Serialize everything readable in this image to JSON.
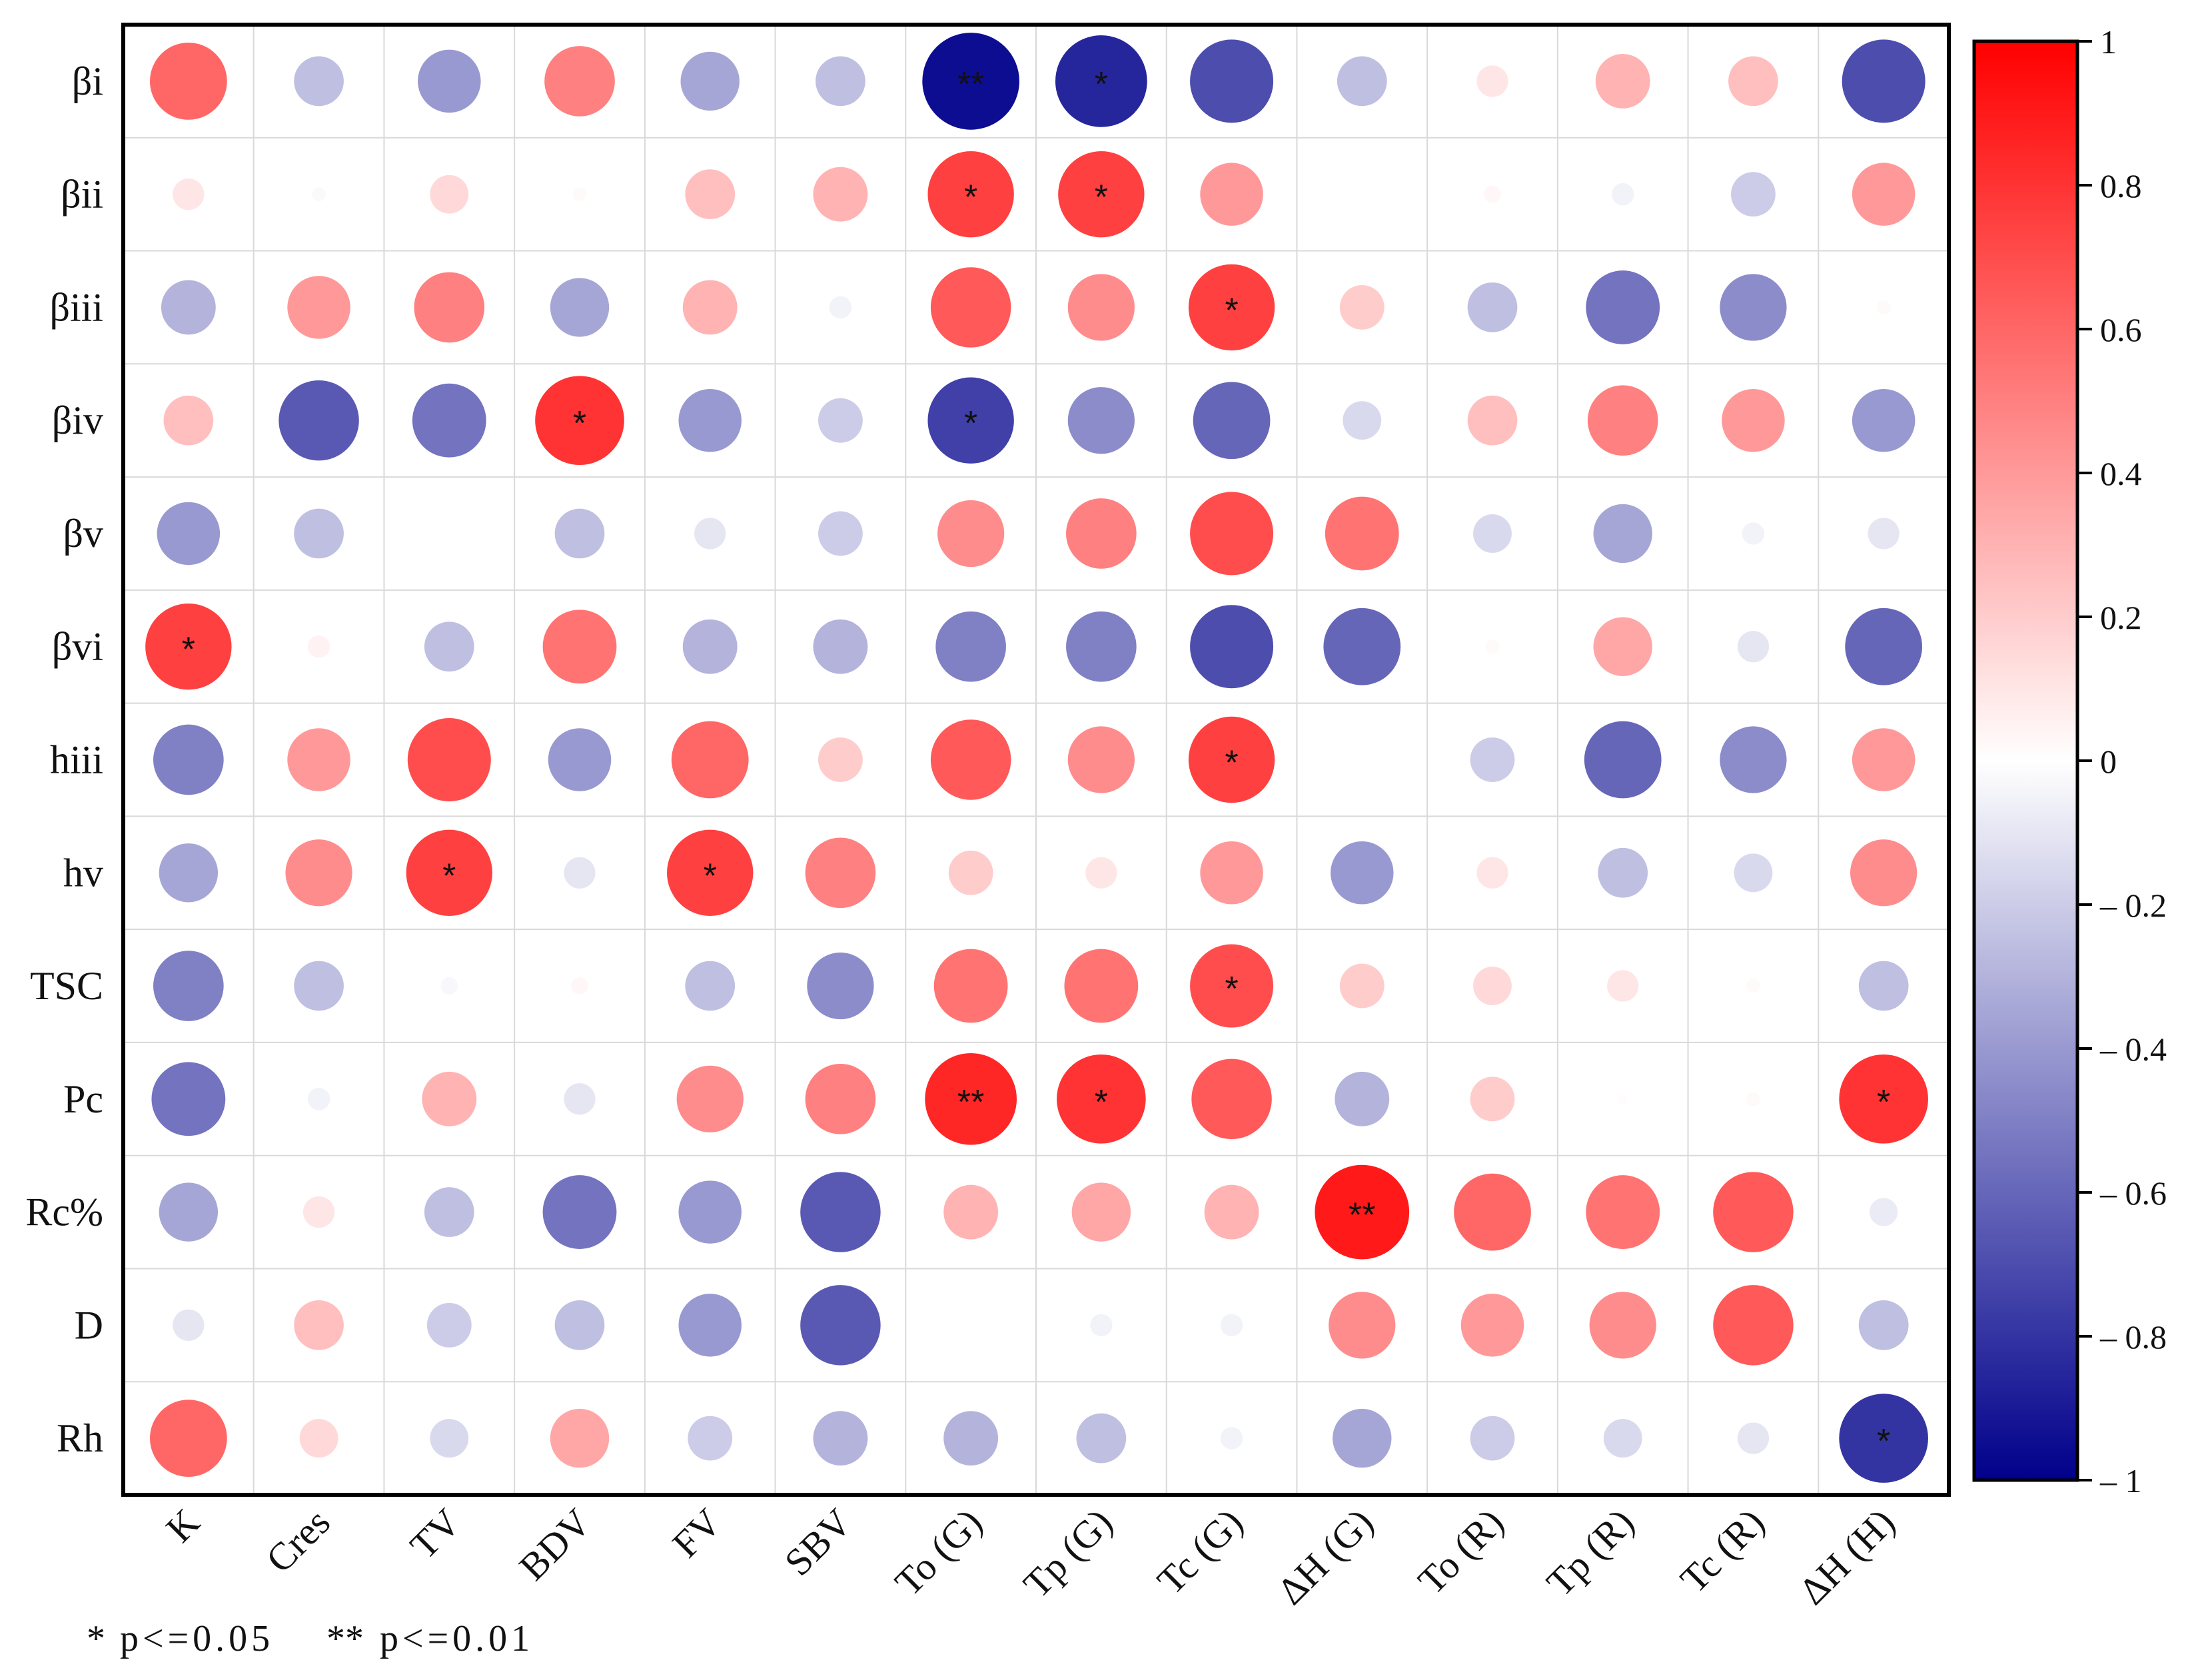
{
  "chart_data": {
    "type": "heatmap",
    "subtype": "correlation-circles",
    "rows": [
      "βi",
      "βii",
      "βiii",
      "βiv",
      "βv",
      "βvi",
      "hiii",
      "hv",
      "TSC",
      "Pc",
      "Rc%",
      "D",
      "Rh"
    ],
    "columns": [
      "K",
      "Cres",
      "TV",
      "BDV",
      "FV",
      "SBV",
      "To (G)",
      "Tp (G)",
      "Tc (G)",
      "ΔH (G)",
      "To (R)",
      "Tp (R)",
      "Tc (R)",
      "ΔH (H)"
    ],
    "values": [
      [
        0.6,
        -0.25,
        -0.4,
        0.5,
        -0.35,
        -0.25,
        -0.95,
        -0.85,
        -0.7,
        -0.25,
        0.1,
        0.3,
        0.25,
        -0.7
      ],
      [
        0.1,
        -0.02,
        0.15,
        0.02,
        0.25,
        0.3,
        0.75,
        0.75,
        0.4,
        0.0,
        0.03,
        -0.05,
        -0.2,
        0.4
      ],
      [
        -0.3,
        0.4,
        0.5,
        -0.35,
        0.3,
        -0.05,
        0.65,
        0.45,
        0.75,
        0.2,
        -0.25,
        -0.55,
        -0.45,
        0.02
      ],
      [
        0.25,
        -0.65,
        -0.55,
        0.8,
        -0.4,
        -0.2,
        -0.75,
        -0.45,
        -0.6,
        -0.15,
        0.25,
        0.5,
        0.4,
        -0.4
      ],
      [
        -0.4,
        -0.25,
        0.0,
        -0.25,
        -0.1,
        -0.2,
        0.45,
        0.5,
        0.7,
        0.55,
        -0.15,
        -0.35,
        -0.05,
        -0.1
      ],
      [
        0.75,
        0.05,
        -0.25,
        0.55,
        -0.3,
        -0.3,
        -0.5,
        -0.5,
        -0.7,
        -0.6,
        0.02,
        0.35,
        -0.1,
        -0.6
      ],
      [
        -0.5,
        0.4,
        0.7,
        -0.4,
        0.6,
        0.2,
        0.65,
        0.45,
        0.75,
        0.0,
        -0.2,
        -0.6,
        -0.45,
        0.4
      ],
      [
        -0.35,
        0.45,
        0.75,
        -0.1,
        0.75,
        0.5,
        0.2,
        0.1,
        0.4,
        -0.4,
        0.1,
        -0.25,
        -0.15,
        0.45
      ],
      [
        -0.5,
        -0.25,
        -0.03,
        0.03,
        -0.25,
        -0.45,
        0.55,
        0.55,
        0.7,
        0.2,
        0.15,
        0.1,
        0.02,
        -0.25
      ],
      [
        -0.55,
        -0.05,
        0.3,
        -0.1,
        0.45,
        0.5,
        0.85,
        0.8,
        0.65,
        -0.3,
        0.2,
        0.01,
        0.02,
        0.8
      ],
      [
        -0.35,
        0.1,
        -0.25,
        -0.55,
        -0.4,
        -0.65,
        0.3,
        0.35,
        0.3,
        0.9,
        0.6,
        0.55,
        0.65,
        -0.08
      ],
      [
        -0.1,
        0.25,
        -0.2,
        -0.25,
        -0.4,
        -0.65,
        0.0,
        -0.05,
        -0.05,
        0.45,
        0.4,
        0.45,
        0.65,
        -0.25
      ],
      [
        0.6,
        0.15,
        -0.15,
        0.35,
        -0.2,
        -0.3,
        -0.3,
        -0.25,
        -0.05,
        -0.35,
        -0.2,
        -0.15,
        -0.1,
        -0.8
      ]
    ],
    "significance": [
      [
        "",
        "",
        "",
        "",
        "",
        "",
        "**",
        "*",
        "",
        "",
        "",
        "",
        "",
        ""
      ],
      [
        "",
        "",
        "",
        "",
        "",
        "",
        "*",
        "*",
        "",
        "",
        "",
        "",
        "",
        ""
      ],
      [
        "",
        "",
        "",
        "",
        "",
        "",
        "",
        "",
        "*",
        "",
        "",
        "",
        "",
        ""
      ],
      [
        "",
        "",
        "",
        "*",
        "",
        "",
        "*",
        "",
        "",
        "",
        "",
        "",
        "",
        ""
      ],
      [
        "",
        "",
        "",
        "",
        "",
        "",
        "",
        "",
        "",
        "",
        "",
        "",
        "",
        ""
      ],
      [
        "*",
        "",
        "",
        "",
        "",
        "",
        "",
        "",
        "",
        "",
        "",
        "",
        "",
        ""
      ],
      [
        "",
        "",
        "",
        "",
        "",
        "",
        "",
        "",
        "*",
        "",
        "",
        "",
        "",
        ""
      ],
      [
        "",
        "",
        "*",
        "",
        "*",
        "",
        "",
        "",
        "",
        "",
        "",
        "",
        "",
        ""
      ],
      [
        "",
        "",
        "",
        "",
        "",
        "",
        "",
        "",
        "*",
        "",
        "",
        "",
        "",
        ""
      ],
      [
        "",
        "",
        "",
        "",
        "",
        "",
        "**",
        "*",
        "",
        "",
        "",
        "",
        "",
        "*"
      ],
      [
        "",
        "",
        "",
        "",
        "",
        "",
        "",
        "",
        "",
        "**",
        "",
        "",
        "",
        ""
      ],
      [
        "",
        "",
        "",
        "",
        "",
        "",
        "",
        "",
        "",
        "",
        "",
        "",
        "",
        ""
      ],
      [
        "",
        "",
        "",
        "",
        "",
        "",
        "",
        "",
        "",
        "",
        "",
        "",
        "",
        "*"
      ]
    ],
    "colorbar": {
      "range": [
        -1,
        1
      ],
      "ticks": [
        "1",
        "0.8",
        "0.6",
        "0.4",
        "0.2",
        "0",
        "– 0.2",
        "– 0.4",
        "– 0.6",
        "– 0.8",
        "– 1"
      ],
      "tick_values": [
        1,
        0.8,
        0.6,
        0.4,
        0.2,
        0,
        -0.2,
        -0.4,
        -0.6,
        -0.8,
        -1
      ],
      "colors": {
        "positive": "#ff0000",
        "zero": "#ffffff",
        "negative": "#00008b"
      }
    },
    "legend_note": {
      "single": "*",
      "single_text": "p<=0.05",
      "double": "**",
      "double_text": "p<=0.01"
    }
  }
}
